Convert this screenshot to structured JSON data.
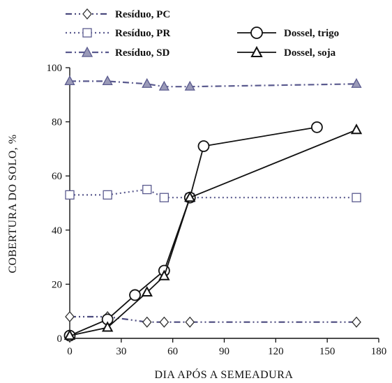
{
  "chart_data": {
    "type": "line",
    "xlabel": "DIA APÓS A SEMEADURA",
    "ylabel": "COBERTURA DO SOLO, %",
    "xlim": [
      0,
      180
    ],
    "ylim": [
      0,
      100
    ],
    "x_ticks": [
      0,
      30,
      60,
      90,
      120,
      150,
      180
    ],
    "y_ticks": [
      0,
      20,
      40,
      60,
      80,
      100
    ],
    "grid": false,
    "legend_position": "top",
    "series": [
      {
        "id": "pc",
        "name": "Resíduo, PC",
        "marker": "diamond",
        "line": "dash-dot-dot",
        "color": "#4b4a7e",
        "marker_color": "#333333",
        "x": [
          0,
          22,
          45,
          55,
          70,
          167
        ],
        "y": [
          8,
          8,
          6,
          6,
          6,
          6
        ]
      },
      {
        "id": "pr",
        "name": "Resíduo, PR",
        "marker": "square",
        "line": "dotted",
        "color": "#5a5a8e",
        "marker_color": "#5a5a8e",
        "x": [
          0,
          22,
          45,
          55,
          70,
          167
        ],
        "y": [
          53,
          53,
          55,
          52,
          52,
          52
        ]
      },
      {
        "id": "sd",
        "name": "Resíduo, SD",
        "marker": "triangle",
        "line": "dash-dot",
        "color": "#5a5a8e",
        "marker_color": "#5a5a8e",
        "x": [
          0,
          22,
          45,
          55,
          70,
          167
        ],
        "y": [
          95,
          95,
          94,
          93,
          93,
          94
        ]
      },
      {
        "id": "trigo",
        "name": "Dossel, trigo",
        "marker": "circle",
        "line": "solid",
        "color": "#111111",
        "marker_color": "#111111",
        "x": [
          0,
          22,
          38,
          55,
          70,
          78,
          144
        ],
        "y": [
          1,
          7,
          16,
          25,
          52,
          71,
          78
        ]
      },
      {
        "id": "soja",
        "name": "Dossel, soja",
        "marker": "triangle",
        "line": "solid",
        "color": "#111111",
        "marker_color": "#111111",
        "x": [
          0,
          22,
          45,
          55,
          70,
          167
        ],
        "y": [
          1,
          4,
          17,
          23,
          52,
          77
        ]
      }
    ]
  }
}
